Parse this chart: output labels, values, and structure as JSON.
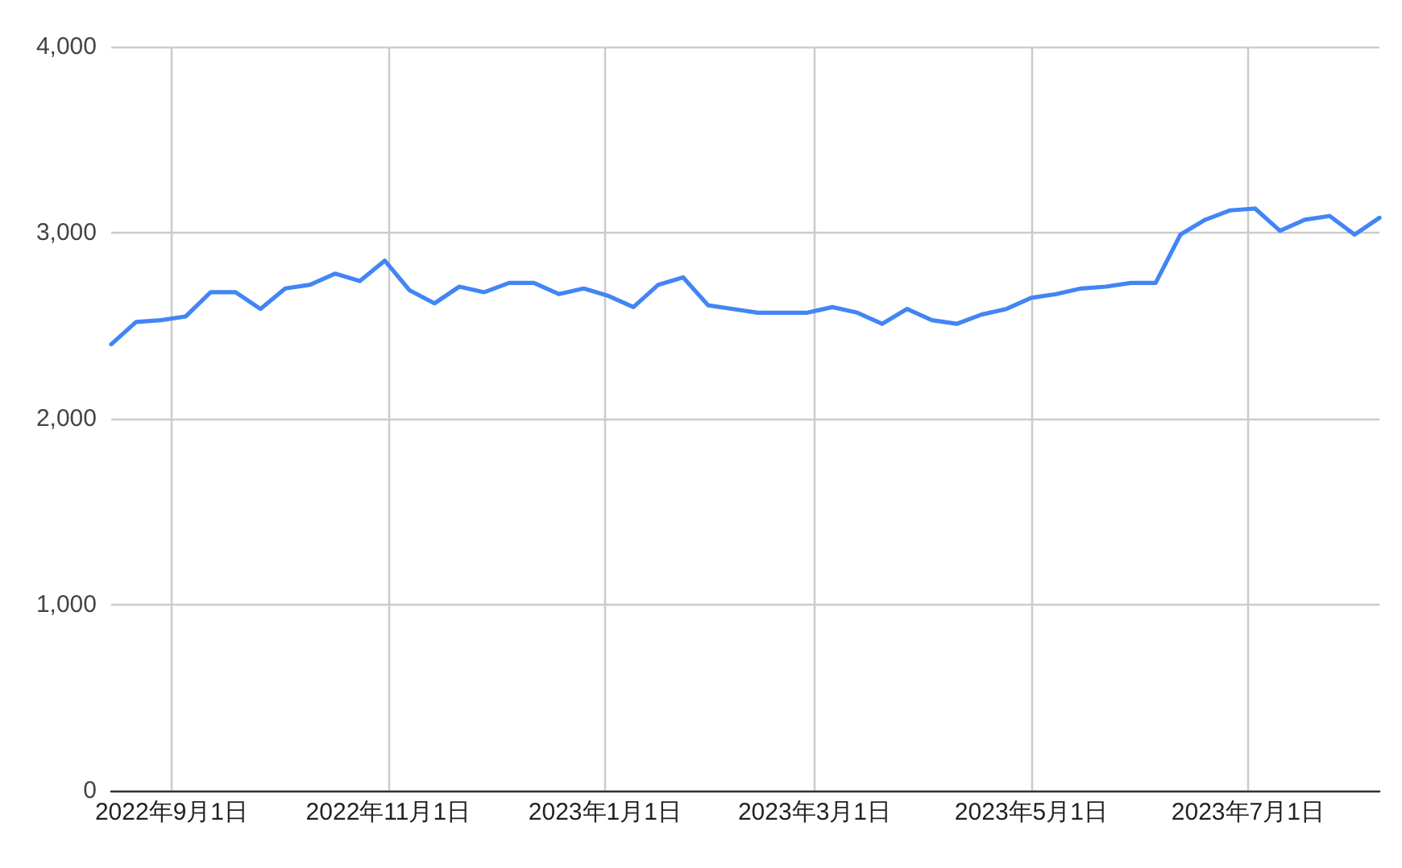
{
  "chart_data": {
    "type": "line",
    "x": [
      "2022-08-15",
      "2022-08-22",
      "2022-08-29",
      "2022-09-05",
      "2022-09-12",
      "2022-09-19",
      "2022-09-26",
      "2022-10-03",
      "2022-10-10",
      "2022-10-17",
      "2022-10-24",
      "2022-10-31",
      "2022-11-07",
      "2022-11-14",
      "2022-11-21",
      "2022-11-28",
      "2022-12-05",
      "2022-12-12",
      "2022-12-19",
      "2022-12-26",
      "2023-01-02",
      "2023-01-09",
      "2023-01-16",
      "2023-01-23",
      "2023-01-30",
      "2023-02-06",
      "2023-02-13",
      "2023-02-20",
      "2023-02-27",
      "2023-03-06",
      "2023-03-13",
      "2023-03-20",
      "2023-03-27",
      "2023-04-03",
      "2023-04-10",
      "2023-04-17",
      "2023-04-24",
      "2023-05-01",
      "2023-05-08",
      "2023-05-15",
      "2023-05-22",
      "2023-05-29",
      "2023-06-05",
      "2023-06-12",
      "2023-06-19",
      "2023-06-26",
      "2023-07-03",
      "2023-07-10",
      "2023-07-17",
      "2023-07-24",
      "2023-07-31",
      "2023-08-07"
    ],
    "series": [
      {
        "color": "#4285f4",
        "values": [
          2400,
          2520,
          2530,
          2550,
          2680,
          2680,
          2590,
          2700,
          2720,
          2780,
          2740,
          2850,
          2690,
          2620,
          2710,
          2680,
          2730,
          2730,
          2670,
          2700,
          2660,
          2600,
          2720,
          2760,
          2610,
          2590,
          2570,
          2570,
          2570,
          2600,
          2570,
          2510,
          2590,
          2530,
          2510,
          2560,
          2590,
          2650,
          2670,
          2700,
          2710,
          2730,
          2730,
          2990,
          3070,
          3120,
          3130,
          3010,
          3070,
          3090,
          2990,
          3080
        ]
      }
    ],
    "xlim": [
      "2022-08-15",
      "2023-08-07"
    ],
    "xticks": [
      {
        "value": "2022-09-01",
        "label": "2022年9月1日"
      },
      {
        "value": "2022-11-01",
        "label": "2022年11月1日"
      },
      {
        "value": "2023-01-01",
        "label": "2023年1月1日"
      },
      {
        "value": "2023-03-01",
        "label": "2023年3月1日"
      },
      {
        "value": "2023-05-01",
        "label": "2023年5月1日"
      },
      {
        "value": "2023-07-01",
        "label": "2023年7月1日"
      }
    ],
    "ylim": [
      0,
      4000
    ],
    "yticks": [
      0,
      {
        "value": 1000,
        "label": "1,000"
      },
      {
        "value": 2000,
        "label": "2,000"
      },
      {
        "value": 3000,
        "label": "3,000"
      },
      {
        "value": 4000,
        "label": "4,000"
      }
    ],
    "grid": true,
    "marker": "none",
    "line_style": "solid"
  }
}
